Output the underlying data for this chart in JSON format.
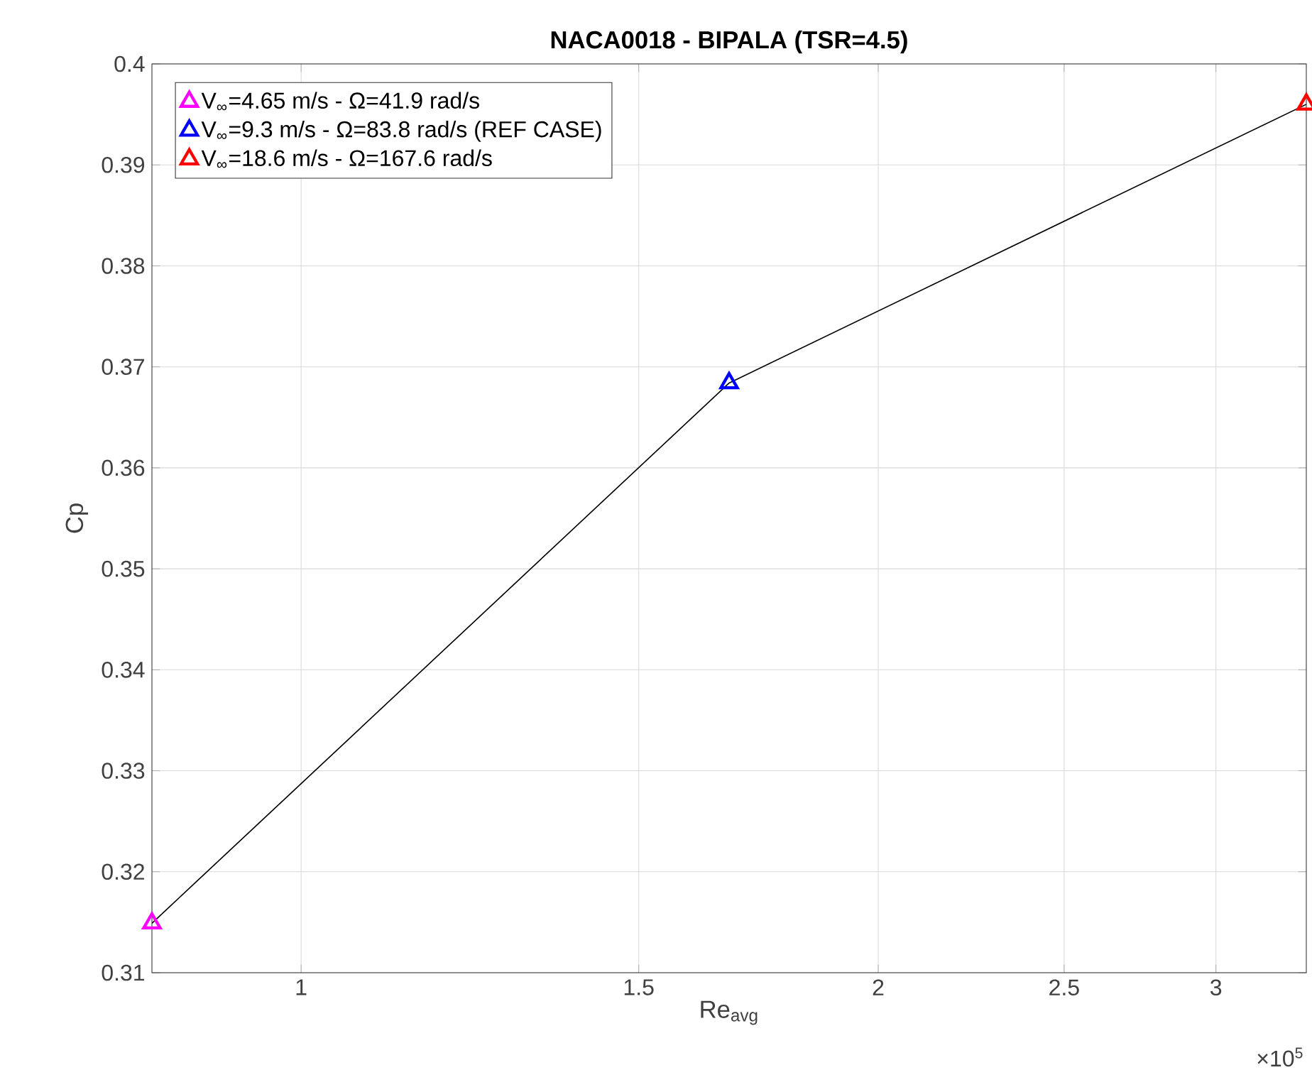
{
  "chart_data": {
    "type": "scatter",
    "title": "NACA0018 - BIPALA (TSR=4.5)",
    "xlabel": "Re$_{avg}$",
    "ylabel": "Cp",
    "log": "x",
    "xlim": [
      0.836,
      3.344
    ],
    "ylim": [
      0.31,
      0.4
    ],
    "xticks": [
      1,
      1.5,
      2,
      2.5,
      3
    ],
    "yticks": [
      0.31,
      0.32,
      0.33,
      0.34,
      0.35,
      0.36,
      0.37,
      0.38,
      0.39,
      0.4
    ],
    "grid": true,
    "legend": "top left",
    "annotations": [
      "×10$^{5}$"
    ],
    "series": [
      {
        "type": "line",
        "color": "#000000",
        "marker": "none",
        "x": [
          0.836,
          1.672,
          3.344
        ],
        "values": [
          0.3149,
          0.3684,
          0.396
        ]
      },
      {
        "name": "V$_{∞}$=4.65 m/s - Ω=41.9 rad/s",
        "color": "#ff00ff",
        "marker": "triangle",
        "x": [
          0.836
        ],
        "values": [
          0.3149
        ]
      },
      {
        "name": "V$_{∞}$=9.3 m/s - Ω=83.8 rad/s (REF CASE)",
        "color": "#0000ff",
        "marker": "triangle",
        "x": [
          1.672
        ],
        "values": [
          0.3684
        ]
      },
      {
        "name": "V$_{∞}$=18.6 m/s - Ω=167.6 rad/s",
        "color": "#ff0000",
        "marker": "triangle",
        "x": [
          3.344
        ],
        "values": [
          0.396
        ]
      }
    ]
  }
}
